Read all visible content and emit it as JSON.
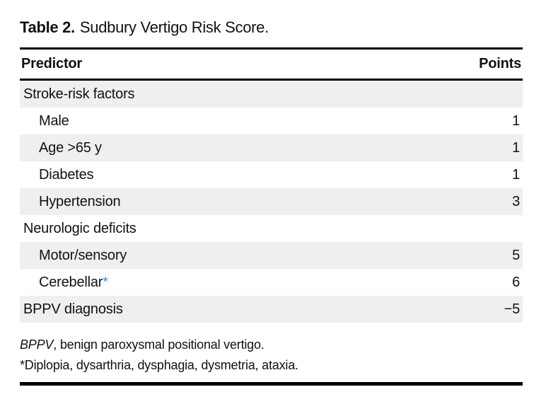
{
  "table": {
    "label": "Table 2.",
    "title": "Sudbury Vertigo Risk Score.",
    "columns": {
      "predictor": "Predictor",
      "points": "Points"
    },
    "rows": [
      {
        "predictor": "Stroke-risk factors",
        "points": "",
        "indent": false,
        "shaded": true
      },
      {
        "predictor": "Male",
        "points": "1",
        "indent": true,
        "shaded": false
      },
      {
        "predictor": "Age >65 y",
        "points": "1",
        "indent": true,
        "shaded": true
      },
      {
        "predictor": "Diabetes",
        "points": "1",
        "indent": true,
        "shaded": false
      },
      {
        "predictor": "Hypertension",
        "points": "3",
        "indent": true,
        "shaded": true
      },
      {
        "predictor": "Neurologic deficits",
        "points": "",
        "indent": false,
        "shaded": false
      },
      {
        "predictor": "Motor/sensory",
        "points": "5",
        "indent": true,
        "shaded": true
      },
      {
        "predictor": "Cerebellar",
        "suffix": "*",
        "points": "6",
        "indent": true,
        "shaded": false
      },
      {
        "predictor": "BPPV diagnosis",
        "points": "−5",
        "indent": false,
        "shaded": true
      }
    ],
    "footnotes": [
      {
        "italic_lead": "BPPV",
        "text": ", benign paroxysmal positional vertigo."
      },
      {
        "italic_lead": "",
        "text": "*Diplopia, dysarthria, dysphagia, dysmetria, ataxia."
      }
    ],
    "colors": {
      "row_shade": "#efefef",
      "asterisk_blue": "#2b9cd8",
      "rule_black": "#000000"
    }
  }
}
